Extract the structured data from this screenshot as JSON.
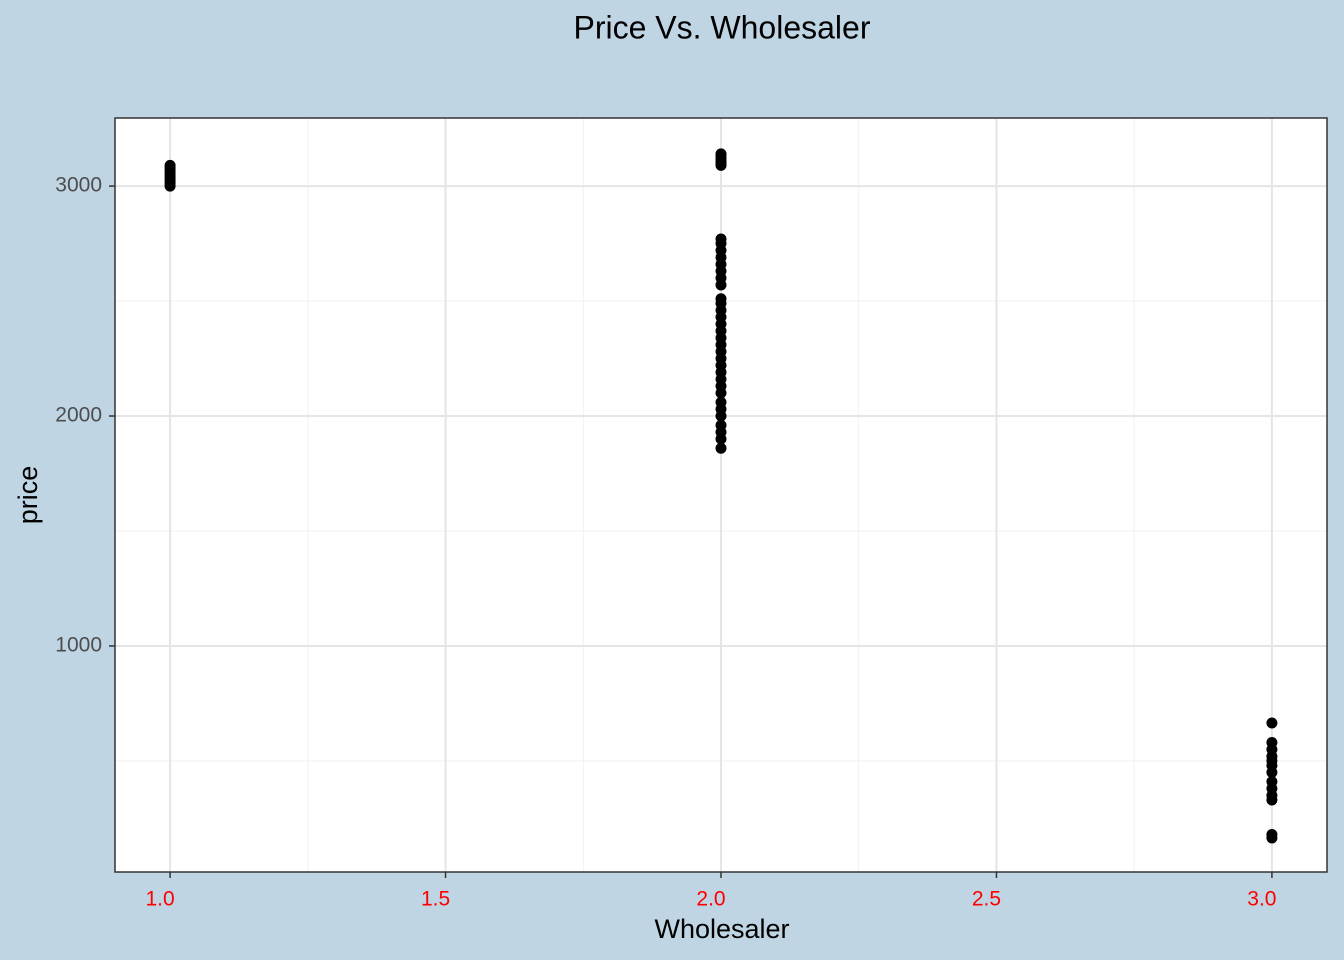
{
  "chart_data": {
    "type": "scatter",
    "title": "Price Vs. Wholesaler",
    "x_label": "Wholesaler",
    "y_label": "price",
    "x": [
      1,
      1,
      1,
      1,
      1,
      1,
      1,
      1,
      1,
      1,
      2,
      2,
      2,
      2,
      2,
      2,
      2,
      2,
      2,
      2,
      2,
      2,
      2,
      2,
      2,
      2,
      2,
      2,
      2,
      2,
      2,
      2,
      2,
      2,
      2,
      2,
      2,
      2,
      2,
      2,
      2,
      2,
      2,
      2,
      2,
      2,
      3,
      3,
      3,
      3,
      3,
      3,
      3,
      3,
      3,
      3,
      3,
      3,
      3
    ],
    "values": [
      3000,
      3010,
      3020,
      3030,
      3040,
      3050,
      3060,
      3070,
      3080,
      3090,
      3090,
      3100,
      3110,
      3120,
      3130,
      3140,
      1860,
      1900,
      1930,
      1960,
      2000,
      2030,
      2060,
      2100,
      2130,
      2160,
      2190,
      2220,
      2250,
      2280,
      2310,
      2340,
      2370,
      2400,
      2430,
      2460,
      2490,
      2510,
      2570,
      2600,
      2630,
      2660,
      2690,
      2720,
      2750,
      2770,
      165,
      180,
      330,
      350,
      380,
      410,
      450,
      480,
      500,
      520,
      550,
      580,
      665
    ],
    "color": "#000000",
    "xlim": [
      0.9,
      3.1
    ],
    "ylim": [
      17,
      3296
    ],
    "xticks": [
      {
        "value": 1,
        "label": "1.0"
      },
      {
        "value": 1.5,
        "label": "1.5"
      },
      {
        "value": 2,
        "label": "2.0"
      },
      {
        "value": 2.5,
        "label": "2.5"
      },
      {
        "value": 3,
        "label": "3.0"
      }
    ],
    "yticks": [
      1000,
      2000,
      3000
    ],
    "x_minor_ticks": [
      1.25,
      1.75,
      2.25,
      2.75
    ],
    "y_minor_ticks": [
      500,
      1500,
      2500
    ],
    "grid": true
  }
}
